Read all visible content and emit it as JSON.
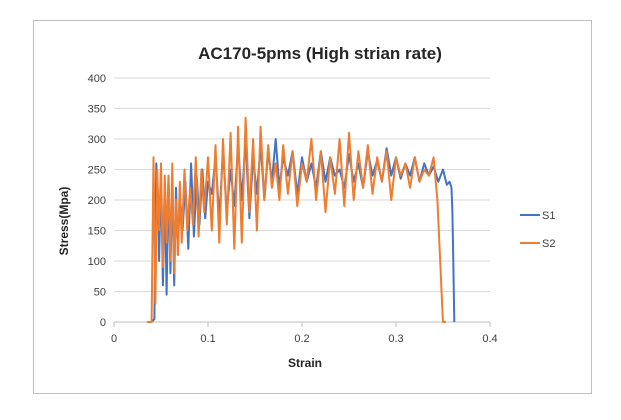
{
  "chart_data": {
    "type": "line",
    "title": "AC170-5pms (High strian rate)",
    "xlabel": "Strain",
    "ylabel": "Stress(Mpa)",
    "xlim": [
      0,
      0.4
    ],
    "ylim": [
      0,
      400
    ],
    "x_ticks": [
      "0",
      "0.1",
      "0.2",
      "0.3",
      "0.4"
    ],
    "y_ticks": [
      "0",
      "50",
      "100",
      "150",
      "200",
      "250",
      "300",
      "350",
      "400"
    ],
    "grid": "horizontal",
    "legend_position": "right",
    "series": [
      {
        "name": "S1",
        "color": "#4472c4",
        "x": [
          0.04,
          0.043,
          0.045,
          0.047,
          0.048,
          0.05,
          0.052,
          0.054,
          0.056,
          0.058,
          0.06,
          0.062,
          0.064,
          0.066,
          0.068,
          0.07,
          0.073,
          0.076,
          0.079,
          0.082,
          0.085,
          0.088,
          0.091,
          0.094,
          0.097,
          0.1,
          0.104,
          0.108,
          0.112,
          0.116,
          0.12,
          0.124,
          0.128,
          0.132,
          0.136,
          0.14,
          0.144,
          0.148,
          0.152,
          0.156,
          0.16,
          0.164,
          0.168,
          0.172,
          0.176,
          0.18,
          0.185,
          0.19,
          0.195,
          0.2,
          0.205,
          0.21,
          0.215,
          0.22,
          0.225,
          0.23,
          0.235,
          0.24,
          0.245,
          0.25,
          0.255,
          0.26,
          0.265,
          0.27,
          0.275,
          0.28,
          0.285,
          0.29,
          0.295,
          0.3,
          0.305,
          0.31,
          0.315,
          0.32,
          0.325,
          0.33,
          0.335,
          0.34,
          0.345,
          0.35,
          0.354,
          0.357,
          0.359,
          0.36,
          0.361,
          0.362
        ],
        "y": [
          0,
          5,
          260,
          200,
          100,
          250,
          60,
          220,
          45,
          240,
          80,
          230,
          60,
          220,
          110,
          210,
          150,
          230,
          120,
          260,
          140,
          240,
          160,
          250,
          170,
          230,
          210,
          270,
          170,
          280,
          180,
          250,
          190,
          290,
          200,
          300,
          170,
          270,
          210,
          290,
          200,
          280,
          230,
          300,
          220,
          270,
          240,
          280,
          210,
          270,
          230,
          260,
          220,
          280,
          230,
          270,
          240,
          250,
          220,
          275,
          230,
          260,
          220,
          280,
          240,
          265,
          230,
          285,
          240,
          270,
          235,
          260,
          240,
          270,
          230,
          260,
          240,
          255,
          230,
          250,
          225,
          230,
          220,
          180,
          100,
          0
        ]
      },
      {
        "name": "S2",
        "color": "#ed7d31",
        "x": [
          0.035,
          0.04,
          0.042,
          0.044,
          0.046,
          0.048,
          0.05,
          0.052,
          0.054,
          0.056,
          0.058,
          0.06,
          0.062,
          0.064,
          0.066,
          0.068,
          0.07,
          0.072,
          0.075,
          0.078,
          0.081,
          0.084,
          0.087,
          0.09,
          0.093,
          0.096,
          0.1,
          0.104,
          0.108,
          0.112,
          0.116,
          0.12,
          0.124,
          0.128,
          0.132,
          0.136,
          0.14,
          0.144,
          0.148,
          0.152,
          0.156,
          0.16,
          0.164,
          0.168,
          0.172,
          0.176,
          0.18,
          0.185,
          0.19,
          0.195,
          0.2,
          0.205,
          0.21,
          0.215,
          0.22,
          0.225,
          0.23,
          0.235,
          0.24,
          0.245,
          0.25,
          0.255,
          0.26,
          0.265,
          0.27,
          0.275,
          0.28,
          0.285,
          0.29,
          0.295,
          0.3,
          0.305,
          0.31,
          0.315,
          0.32,
          0.325,
          0.33,
          0.335,
          0.34,
          0.344,
          0.347,
          0.349,
          0.35,
          0.351,
          0.352,
          0.353
        ],
        "y": [
          0,
          0,
          270,
          30,
          250,
          150,
          260,
          90,
          240,
          130,
          240,
          100,
          260,
          80,
          200,
          110,
          230,
          130,
          250,
          150,
          220,
          160,
          270,
          140,
          250,
          180,
          270,
          150,
          290,
          130,
          300,
          160,
          310,
          120,
          320,
          130,
          335,
          180,
          300,
          150,
          320,
          200,
          290,
          220,
          260,
          200,
          290,
          210,
          280,
          190,
          260,
          230,
          300,
          200,
          280,
          180,
          270,
          210,
          300,
          190,
          310,
          200,
          280,
          220,
          290,
          210,
          270,
          230,
          280,
          200,
          270,
          240,
          260,
          220,
          270,
          230,
          250,
          240,
          270,
          200,
          100,
          30,
          0,
          0,
          0,
          0
        ]
      }
    ]
  }
}
